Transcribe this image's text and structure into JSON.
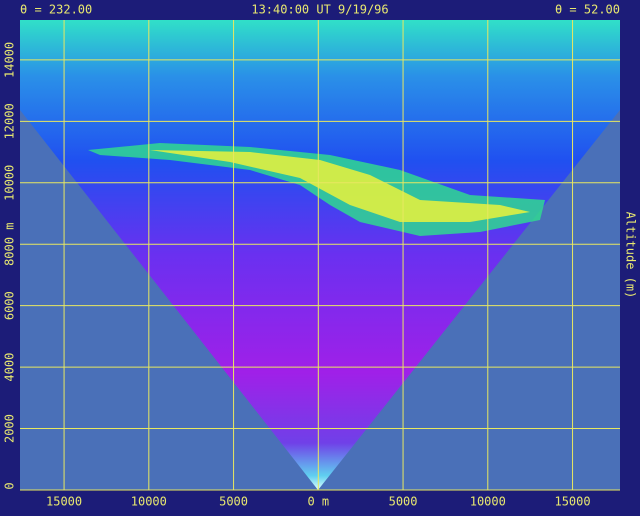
{
  "chart_data": {
    "type": "rhi",
    "header": {
      "left": "θ = 232.00",
      "center": "13:40:00 UT  9/19/96",
      "right": "θ = 52.00"
    },
    "y_label": "Altitude (m)",
    "xlim": [
      -17600,
      17800
    ],
    "ylim": [
      0,
      15300
    ],
    "xticks": [
      {
        "value": -15000,
        "label": "15000"
      },
      {
        "value": -10000,
        "label": "10000"
      },
      {
        "value": -5000,
        "label": "5000"
      },
      {
        "value": 0,
        "label": "0 m"
      },
      5000,
      10000,
      15000
    ],
    "yticks": [
      0,
      2000,
      4000,
      6000,
      {
        "value": 8000,
        "label": "8000 m"
      },
      10000,
      12000,
      14000
    ],
    "grid": true,
    "grid_color": "#e8e860"
  }
}
